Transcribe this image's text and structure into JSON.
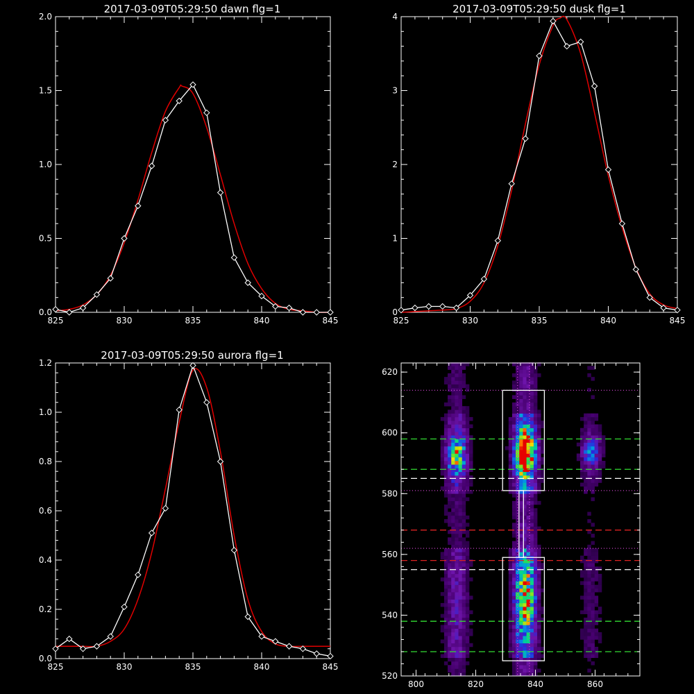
{
  "colors": {
    "background": "#000000",
    "axes": "#ffffff",
    "observed": "#ffffff",
    "fit": "#e00000",
    "green_lines": "#33dd33",
    "red_lines": "#dd2222",
    "white_lines": "#ffffff",
    "magenta_dots": "#cc44cc"
  },
  "chart_data": [
    {
      "type": "line",
      "title": "2017-03-09T05:29:50 dawn flg=1",
      "xlim": [
        825,
        845
      ],
      "ylim": [
        0,
        2.0
      ],
      "xticks": [
        825,
        830,
        835,
        840,
        845
      ],
      "xtick_labels": [
        "825",
        "830",
        "835",
        "840",
        "845"
      ],
      "yticks": [
        0,
        0.5,
        1.0,
        1.5,
        2.0
      ],
      "ytick_labels": [
        "0.0",
        "0.5",
        "1.0",
        "1.5",
        "2.0"
      ],
      "grid": false,
      "series": [
        {
          "role": "observed",
          "marker": "diamond",
          "x": [
            825,
            826,
            827,
            828,
            829,
            830,
            831,
            832,
            833,
            834,
            835,
            836,
            837,
            838,
            839,
            840,
            841,
            842,
            843,
            844,
            845
          ],
          "y": [
            0.02,
            0.0,
            0.03,
            0.12,
            0.23,
            0.5,
            0.72,
            0.99,
            1.3,
            1.43,
            1.54,
            1.35,
            0.81,
            0.37,
            0.2,
            0.11,
            0.04,
            0.03,
            0.0,
            0.0,
            0.0
          ]
        },
        {
          "role": "fit",
          "line": "smooth",
          "x": [
            825,
            826,
            827,
            828,
            829,
            830,
            831,
            832,
            833,
            834,
            834.2,
            835,
            836,
            837,
            838,
            839,
            840,
            841,
            842,
            843,
            844,
            845
          ],
          "y": [
            0.01,
            0.02,
            0.05,
            0.12,
            0.25,
            0.47,
            0.76,
            1.08,
            1.36,
            1.52,
            1.53,
            1.48,
            1.25,
            0.93,
            0.6,
            0.33,
            0.16,
            0.06,
            0.02,
            0.01,
            0.0,
            0.0
          ]
        }
      ]
    },
    {
      "type": "line",
      "title": "2017-03-09T05:29:50 dusk flg=1",
      "xlim": [
        825,
        845
      ],
      "ylim": [
        0,
        4
      ],
      "xticks": [
        825,
        830,
        835,
        840,
        845
      ],
      "xtick_labels": [
        "825",
        "830",
        "835",
        "840",
        "845"
      ],
      "yticks": [
        0,
        1,
        2,
        3,
        4
      ],
      "ytick_labels": [
        "0",
        "1",
        "2",
        "3",
        "4"
      ],
      "grid": false,
      "series": [
        {
          "role": "observed",
          "marker": "diamond",
          "x": [
            825,
            826,
            827,
            828,
            829,
            830,
            831,
            832,
            833,
            834,
            835,
            836,
            837,
            838,
            839,
            840,
            841,
            842,
            843,
            844,
            845
          ],
          "y": [
            0.03,
            0.06,
            0.08,
            0.08,
            0.06,
            0.23,
            0.45,
            0.97,
            1.74,
            2.35,
            3.47,
            3.94,
            3.6,
            3.66,
            3.06,
            1.93,
            1.2,
            0.58,
            0.2,
            0.06,
            0.03
          ]
        },
        {
          "role": "fit",
          "line": "smooth",
          "x": [
            825,
            826,
            827,
            828,
            829,
            830,
            831,
            832,
            833,
            834,
            835,
            836,
            836.5,
            837,
            838,
            839,
            840,
            841,
            842,
            843,
            844,
            845
          ],
          "y": [
            0.0,
            0.01,
            0.02,
            0.03,
            0.05,
            0.15,
            0.4,
            0.9,
            1.65,
            2.55,
            3.35,
            3.88,
            3.98,
            3.96,
            3.5,
            2.7,
            1.85,
            1.15,
            0.6,
            0.25,
            0.1,
            0.05
          ]
        }
      ]
    },
    {
      "type": "line",
      "title": "2017-03-09T05:29:50 aurora flg=1",
      "xlim": [
        825,
        845
      ],
      "ylim": [
        0,
        1.2
      ],
      "xticks": [
        825,
        830,
        835,
        840,
        845
      ],
      "xtick_labels": [
        "825",
        "830",
        "835",
        "840",
        "845"
      ],
      "yticks": [
        0,
        0.2,
        0.4,
        0.6,
        0.8,
        1.0,
        1.2
      ],
      "ytick_labels": [
        "0.0",
        "0.2",
        "0.4",
        "0.6",
        "0.8",
        "1.0",
        "1.2"
      ],
      "grid": false,
      "series": [
        {
          "role": "observed",
          "marker": "diamond",
          "x": [
            825,
            826,
            827,
            828,
            829,
            830,
            831,
            832,
            833,
            834,
            835,
            836,
            837,
            838,
            839,
            840,
            841,
            842,
            843,
            844,
            845
          ],
          "y": [
            0.04,
            0.08,
            0.04,
            0.05,
            0.09,
            0.21,
            0.34,
            0.51,
            0.61,
            1.01,
            1.19,
            1.04,
            0.8,
            0.44,
            0.17,
            0.09,
            0.07,
            0.05,
            0.04,
            0.02,
            0.01
          ]
        },
        {
          "role": "fit",
          "line": "smooth",
          "x": [
            825,
            826,
            827,
            828,
            829,
            830,
            831,
            832,
            833,
            834,
            835,
            836,
            837,
            838,
            839,
            840,
            841,
            842,
            843,
            844,
            845
          ],
          "y": [
            0.05,
            0.05,
            0.05,
            0.05,
            0.07,
            0.12,
            0.24,
            0.43,
            0.69,
            0.96,
            1.17,
            1.1,
            0.84,
            0.5,
            0.24,
            0.11,
            0.06,
            0.05,
            0.05,
            0.05,
            0.05
          ]
        }
      ]
    },
    {
      "type": "heatmap",
      "title": "",
      "xlim": [
        795,
        875
      ],
      "ylim": [
        520,
        623
      ],
      "xticks": [
        800,
        820,
        840,
        860
      ],
      "xtick_labels": [
        "800",
        "820",
        "840",
        "860"
      ],
      "yticks": [
        520,
        540,
        560,
        580,
        600,
        620
      ],
      "ytick_labels": [
        "520",
        "540",
        "560",
        "580",
        "600",
        "620"
      ],
      "colormap": "rainbow",
      "columns": [
        {
          "x_center": 813,
          "x_width": 4,
          "intensity": 0.45
        },
        {
          "x_center": 836,
          "x_width": 4,
          "intensity": 0.75
        },
        {
          "x_center": 858,
          "x_width": 4,
          "intensity": 0.2
        }
      ],
      "blobs": [
        {
          "x": 813,
          "y": 592,
          "sx": 3,
          "sy": 6,
          "value": 0.55
        },
        {
          "x": 836,
          "y": 593,
          "sx": 3,
          "sy": 7,
          "value": 1.0
        },
        {
          "x": 836,
          "y": 545,
          "sx": 3,
          "sy": 12,
          "value": 0.55
        },
        {
          "x": 858,
          "y": 593,
          "sx": 3,
          "sy": 5,
          "value": 0.35
        }
      ],
      "boxes": [
        {
          "x0": 829,
          "x1": 843,
          "y0": 581,
          "y1": 614
        },
        {
          "x0": 829,
          "x1": 843,
          "y0": 525,
          "y1": 559
        }
      ],
      "connector_x": [
        834.5,
        836
      ],
      "hlines_green": [
        598,
        588,
        538,
        528
      ],
      "hlines_white": [
        585,
        555
      ],
      "hlines_red": [
        568,
        558
      ],
      "hlines_magenta_dotted": [
        614,
        581,
        562
      ],
      "vlines_magenta_dotted": [
        834,
        838
      ]
    }
  ]
}
